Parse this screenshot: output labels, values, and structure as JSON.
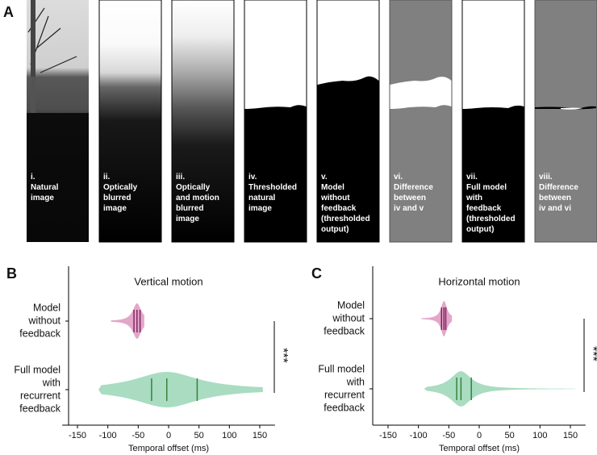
{
  "panel_a": {
    "label": "A",
    "images": [
      {
        "label": [
          "i.",
          "Natural",
          "image"
        ]
      },
      {
        "label": [
          "ii.",
          "Optically",
          "blurred",
          "image"
        ]
      },
      {
        "label": [
          "iii.",
          "Optically",
          "and motion",
          "blurred",
          "image"
        ]
      },
      {
        "label": [
          "iv.",
          "Thresholded",
          "natural",
          "image"
        ]
      },
      {
        "label": [
          "v.",
          "Model",
          "without",
          "feedback",
          "(thresholded",
          "output)"
        ]
      },
      {
        "label": [
          "vi.",
          "Difference",
          "between",
          "iv and v"
        ]
      },
      {
        "label": [
          "vii.",
          "Full model",
          "with",
          "feedback",
          "(thresholded",
          "output)"
        ]
      },
      {
        "label": [
          "viii.",
          "Difference",
          "between",
          "iv and vi"
        ]
      }
    ]
  },
  "chart_data": [
    {
      "type": "violin",
      "label": "B",
      "title": "Vertical motion",
      "x_label": "Temporal offset (ms)",
      "categories": [
        [
          "Model",
          "without",
          "feedback"
        ],
        [
          "Full model",
          "with",
          "recurrent",
          "feedback"
        ]
      ],
      "colors": [
        "#e3a6c9",
        "#a9dcc1"
      ],
      "line_colors": [
        "#7b1d5a",
        "#2e7d32"
      ],
      "min": [
        -95,
        -115
      ],
      "q1": [
        -57,
        -28
      ],
      "median": [
        -52,
        -3
      ],
      "q3": [
        -47,
        47
      ],
      "max": [
        -40,
        155
      ],
      "significance": "***",
      "xlim": [
        -175,
        175
      ],
      "xticks": [
        -150,
        -100,
        -50,
        0,
        50,
        100,
        150
      ]
    },
    {
      "type": "violin",
      "label": "C",
      "title": "Horizontal motion",
      "x_label": "Temporal offset (ms)",
      "categories": [
        [
          "Model",
          "without",
          "feedback"
        ],
        [
          "Full model",
          "with",
          "recurrent",
          "feedback"
        ]
      ],
      "colors": [
        "#e3a6c9",
        "#a9dcc1"
      ],
      "line_colors": [
        "#7b1d5a",
        "#2e7d32"
      ],
      "min": [
        -95,
        -90
      ],
      "q1": [
        -62,
        -37
      ],
      "median": [
        -58,
        -30
      ],
      "q3": [
        -55,
        -13
      ],
      "max": [
        -45,
        158
      ],
      "significance": "***",
      "xlim": [
        -175,
        175
      ],
      "xticks": [
        -150,
        -100,
        -50,
        0,
        50,
        100,
        150
      ]
    }
  ]
}
